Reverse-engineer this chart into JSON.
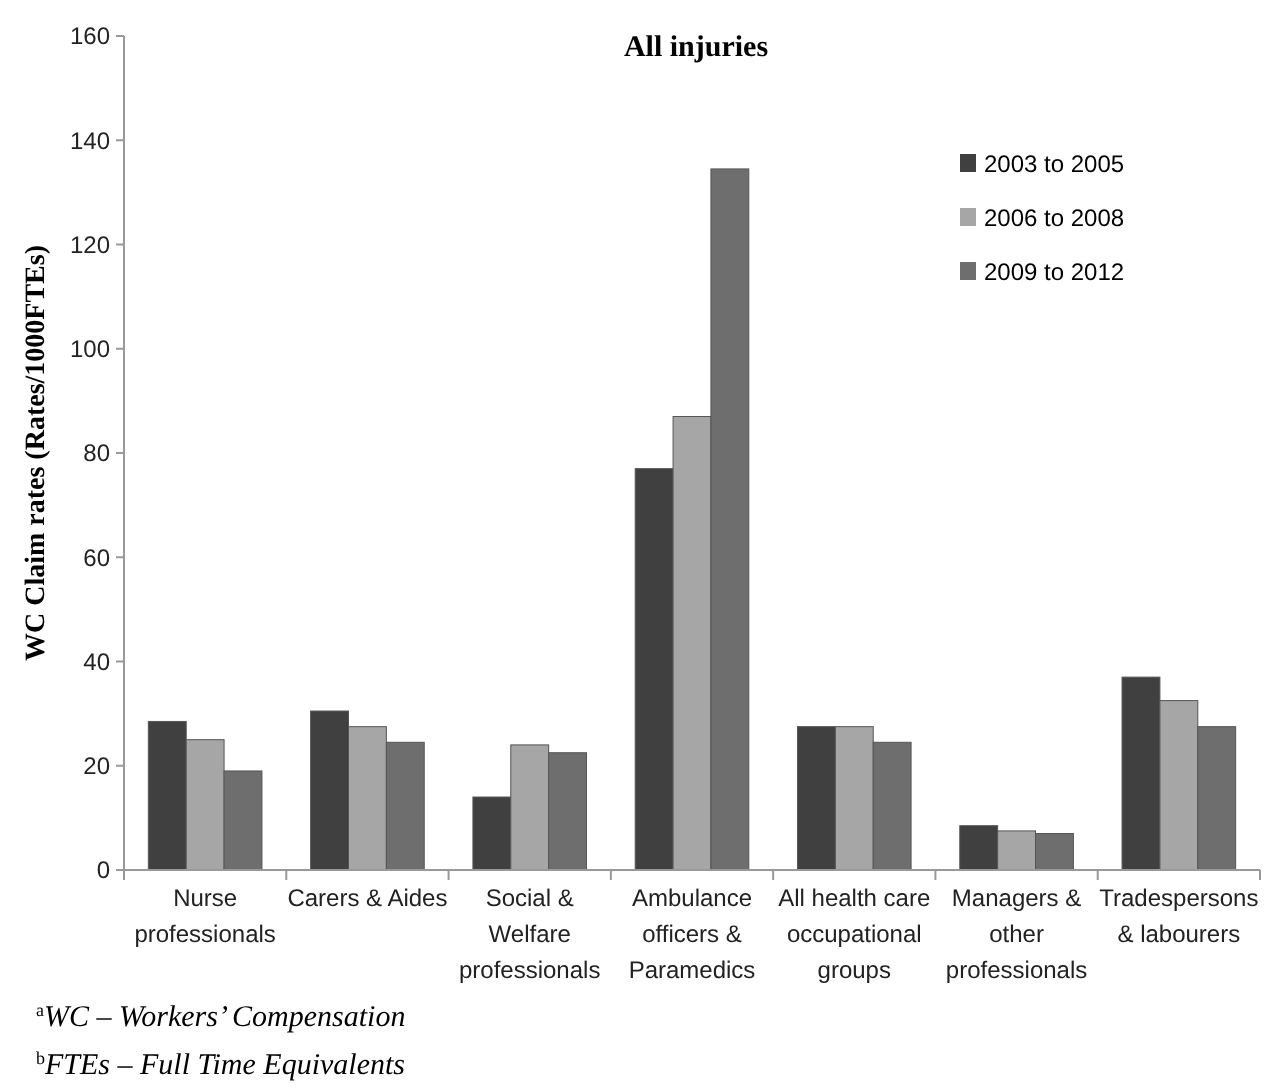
{
  "chart_data": {
    "type": "bar",
    "title": "All injuries",
    "ylabel": "WC Claim rates (Rates/1000FTEs)",
    "categories": [
      "Nurse\nprofessionals",
      "Carers & Aides",
      "Social &\nWelfare\nprofessionals",
      "Ambulance\nofficers &\nParamedics",
      "All health care\noccupational\ngroups",
      "Managers &\nother\nprofessionals",
      "Tradespersons\n& labourers"
    ],
    "series": [
      {
        "name": "2003 to 2005",
        "color": "#404040",
        "values": [
          28.5,
          30.5,
          14,
          77,
          27.5,
          8.5,
          37
        ]
      },
      {
        "name": "2006 to 2008",
        "color": "#a6a6a6",
        "values": [
          25,
          27.5,
          24,
          87,
          27.5,
          7.5,
          32.5
        ]
      },
      {
        "name": "2009 to 2012",
        "color": "#6e6e6e",
        "values": [
          19,
          24.5,
          22.5,
          134.5,
          24.5,
          7,
          27.5
        ]
      }
    ],
    "ylim": [
      0,
      160
    ],
    "yticks": [
      0,
      20,
      40,
      60,
      80,
      100,
      120,
      140,
      160
    ],
    "grid": false,
    "legend": "top right",
    "annotations": [
      "$^{a}$WC – Workers’ Compensation",
      "$^{b}$FTEs – Full Time Equivalents"
    ]
  }
}
